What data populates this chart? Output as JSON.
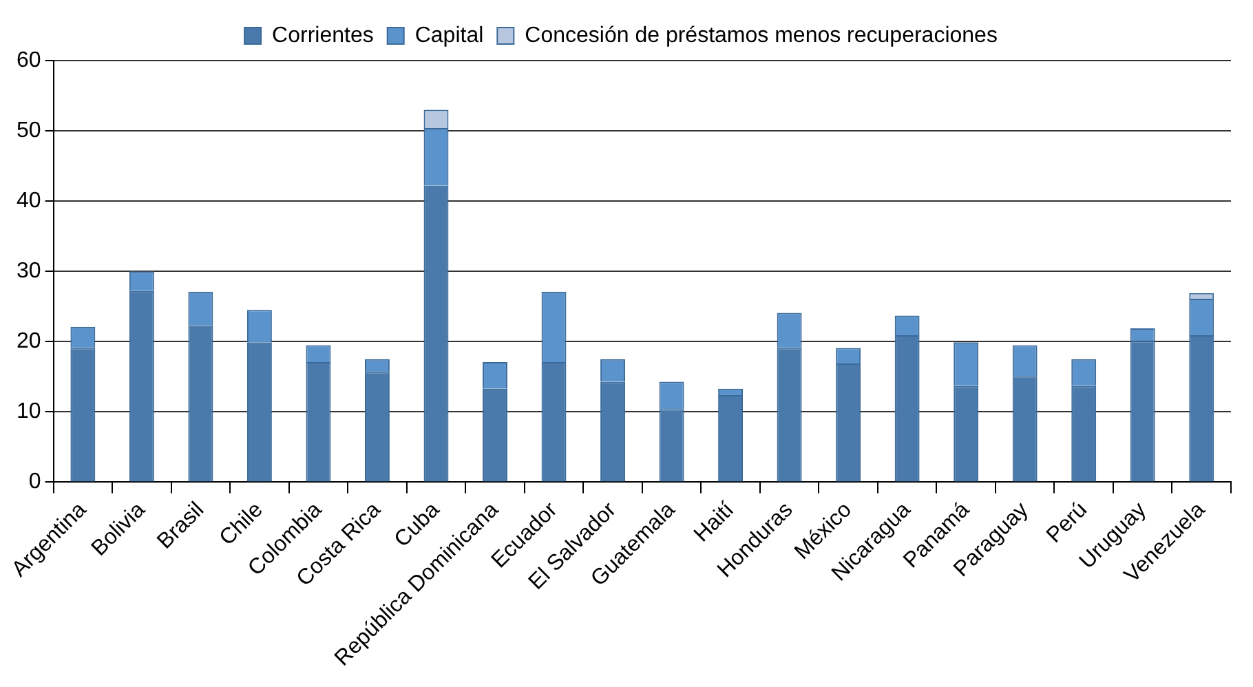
{
  "chart_data": {
    "type": "bar",
    "stacked": true,
    "categories": [
      "Argentina",
      "Bolivia",
      "Brasil",
      "Chile",
      "Colombia",
      "Costa Rica",
      "Cuba",
      "República Dominicana",
      "Ecuador",
      "El Salvador",
      "Guatemala",
      "Haití",
      "Honduras",
      "México",
      "Nicaragua",
      "Panamá",
      "Paraguay",
      "Perú",
      "Uruguay",
      "Venezuela"
    ],
    "series": [
      {
        "name": "Corrientes",
        "color": "#4a7aab",
        "values": [
          19.1,
          27.2,
          22.3,
          19.9,
          17.1,
          15.7,
          42.2,
          13.3,
          17.1,
          14.3,
          10.4,
          12.4,
          19.1,
          16.9,
          20.9,
          13.7,
          15.1,
          13.7,
          20.1,
          20.9
        ]
      },
      {
        "name": "Capital",
        "color": "#5b93cc",
        "values": [
          3.0,
          2.8,
          4.8,
          4.6,
          2.4,
          1.8,
          8.2,
          3.8,
          10.0,
          3.2,
          3.9,
          0.9,
          5.0,
          2.2,
          2.8,
          6.2,
          4.4,
          3.8,
          1.8,
          5.2
        ]
      },
      {
        "name": "Concesión de préstamos menos recuperaciones",
        "color": "#b8c7e0",
        "values": [
          null,
          null,
          null,
          null,
          null,
          null,
          2.6,
          null,
          null,
          null,
          null,
          null,
          null,
          null,
          null,
          null,
          null,
          null,
          null,
          0.8
        ]
      }
    ],
    "ylim": [
      0,
      60
    ],
    "yticks": [
      0,
      10,
      20,
      30,
      40,
      50,
      60
    ],
    "grid": "y",
    "legend": "top"
  }
}
